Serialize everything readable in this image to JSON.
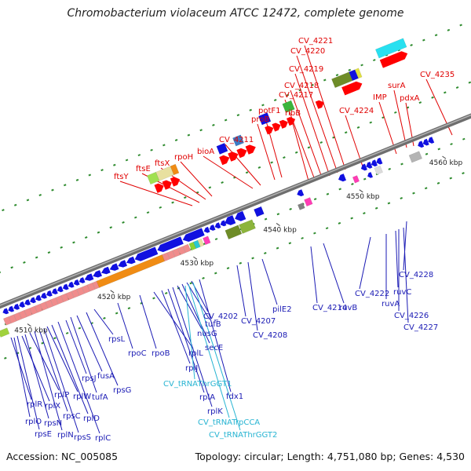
{
  "title": "Chromobacterium violaceum ATCC 12472, complete genome",
  "footer": {
    "accession": "Accession: NC_005085",
    "topology": "Topology: circular; Length: 4,751,080 bp; Genes: 4,530"
  },
  "colors": {
    "forward_label": "#e00000",
    "reverse_label": "#1a1ab4",
    "rna_label": "#27b4d2",
    "backbone": "#8c8c8c",
    "tick": "#2e8b2e"
  },
  "kbp_ticks": [
    {
      "label": "4510 kbp",
      "pos": 4510
    },
    {
      "label": "4520 kbp",
      "pos": 4520
    },
    {
      "label": "4530 kbp",
      "pos": 4530
    },
    {
      "label": "4540 kbp",
      "pos": 4540
    },
    {
      "label": "4550 kbp",
      "pos": 4550
    },
    {
      "label": "4560 kbp",
      "pos": 4560
    }
  ],
  "top_labels": [
    "ftsY",
    "ftsE",
    "ftsX",
    "rpoH",
    "bioA",
    "CV_4211",
    "proB",
    "potF1",
    "ribB",
    "CV_4217",
    "CV_4218",
    "CV_4219",
    "CV_4220",
    "CV_4221",
    "CV_4224",
    "IMP",
    "surA",
    "pdxA",
    "CV_4235"
  ],
  "bottom_labels": [
    "rplR",
    "rplO",
    "rpsE",
    "rplX",
    "rpsN",
    "rplP",
    "rplN",
    "rpsC",
    "rpsS",
    "rplW",
    "rplD",
    "rplC",
    "rpsJ",
    "tufA",
    "fusA",
    "rpsG",
    "rpsL",
    "rpoC",
    "rpoB",
    "rplL",
    "rplJ",
    "rplA",
    "rplK",
    "nusG",
    "secE",
    "tufB",
    "CV_4202",
    "fdx1",
    "CV_4207",
    "CV_4208",
    "pilE2",
    "CV_4214",
    "ruvB",
    "CV_4222",
    "ruvA",
    "ruvC",
    "CV_4226",
    "CV_4227",
    "CV_4228"
  ],
  "rna_labels": [
    "CV_tRNAThrGGT1",
    "CV_tRNATrpCCA",
    "CV_tRNAThrGGT2"
  ]
}
